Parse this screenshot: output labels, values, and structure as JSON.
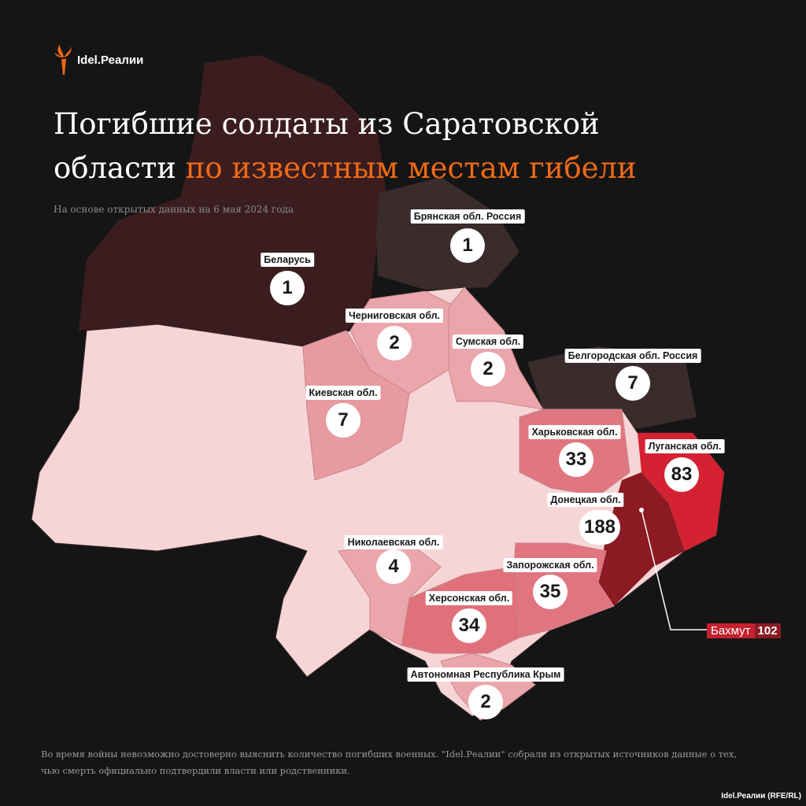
{
  "brand": {
    "name": "Idel.Реалии",
    "logo_icon": "torch-flame-icon",
    "accent": "#ef6a16"
  },
  "title": {
    "line1": "Погибшие солдаты из Саратовской",
    "line2_plain": "области",
    "line2_accent": "по известным местам гибели"
  },
  "subtitle": "На основе открытых данных на 6 мая 2024 года",
  "regions": [
    {
      "name": "Беларусь",
      "count": "1",
      "color": "#3b1d20"
    },
    {
      "name": "Брянская обл. Россия",
      "count": "1",
      "color": "#3a2b2c"
    },
    {
      "name": "Черниговская обл.",
      "count": "2",
      "color": "#eaa6ab"
    },
    {
      "name": "Сумская обл.",
      "count": "2",
      "color": "#eaa6ab"
    },
    {
      "name": "Белгородская обл. Россия",
      "count": "7",
      "color": "#3a2b2c"
    },
    {
      "name": "Киевская обл.",
      "count": "7",
      "color": "#e79aa0"
    },
    {
      "name": "Харьковская обл.",
      "count": "33",
      "color": "#e07780"
    },
    {
      "name": "Луганская обл.",
      "count": "83",
      "color": "#d42232"
    },
    {
      "name": "Донецкая обл.",
      "count": "188",
      "color": "#8b1a22"
    },
    {
      "name": "Николаевская обл.",
      "count": "4",
      "color": "#eaa6ab"
    },
    {
      "name": "Запорожская обл.",
      "count": "35",
      "color": "#e07580"
    },
    {
      "name": "Херсонская обл.",
      "count": "34",
      "color": "#e0717a"
    },
    {
      "name": "Автономная Республика Крым",
      "count": "2",
      "color": "#eba6ab"
    }
  ],
  "other_regions_color": "#f6d5d7",
  "callout": {
    "name": "Бахмут",
    "count": "102"
  },
  "footnote": "Во время войны невозможно достоверно выяснить количество погибших военных. \"Idel.Реалии\" собрали из открытых источников данные о тех, чью смерть официально подтвердили власти или родственники.",
  "credit": "Idel.Реалии (RFE/RL)"
}
